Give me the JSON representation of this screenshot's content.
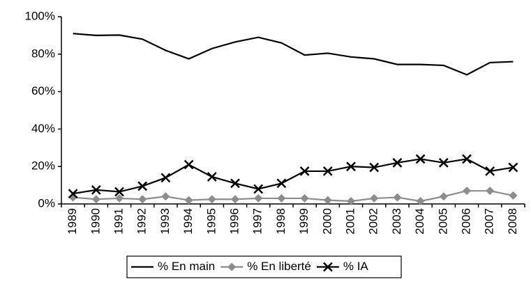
{
  "chart_data": {
    "type": "line",
    "categories": [
      "1989",
      "1990",
      "1991",
      "1992",
      "1993",
      "1994",
      "1995",
      "1996",
      "1997",
      "1998",
      "1999",
      "2000",
      "2001",
      "2002",
      "2003",
      "2004",
      "2005",
      "2006",
      "2007",
      "2008"
    ],
    "series": [
      {
        "name": "% En main",
        "color": "#000000",
        "marker": "none",
        "values": [
          91,
          90,
          90.2,
          88,
          82,
          77.5,
          83,
          86.5,
          89,
          86,
          79.5,
          80.5,
          78.5,
          77.5,
          74.5,
          74.5,
          74,
          69,
          75.5,
          76
        ]
      },
      {
        "name": "% En liberté",
        "color": "#8c8c8c",
        "marker": "diamond",
        "values": [
          3.5,
          2.5,
          3,
          2.5,
          4,
          2,
          2.5,
          2.5,
          3,
          3,
          3,
          2,
          1.5,
          3,
          3.5,
          1.5,
          4,
          7,
          7,
          4.5
        ]
      },
      {
        "name": "% IA",
        "color": "#000000",
        "marker": "x",
        "values": [
          5.5,
          7.5,
          6.5,
          9.5,
          14,
          21,
          14.5,
          11,
          8,
          11,
          17.5,
          17.5,
          20,
          19.5,
          22,
          24,
          22,
          24,
          17.5,
          19.5
        ]
      }
    ],
    "ylim": [
      0,
      100
    ],
    "yticks": [
      {
        "value": 0,
        "label": "0%"
      },
      {
        "value": 20,
        "label": "20%"
      },
      {
        "value": 40,
        "label": "40%"
      },
      {
        "value": 60,
        "label": "60%"
      },
      {
        "value": 80,
        "label": "80%"
      },
      {
        "value": 100,
        "label": "100%"
      }
    ],
    "grid": false,
    "legend": "bottom"
  }
}
